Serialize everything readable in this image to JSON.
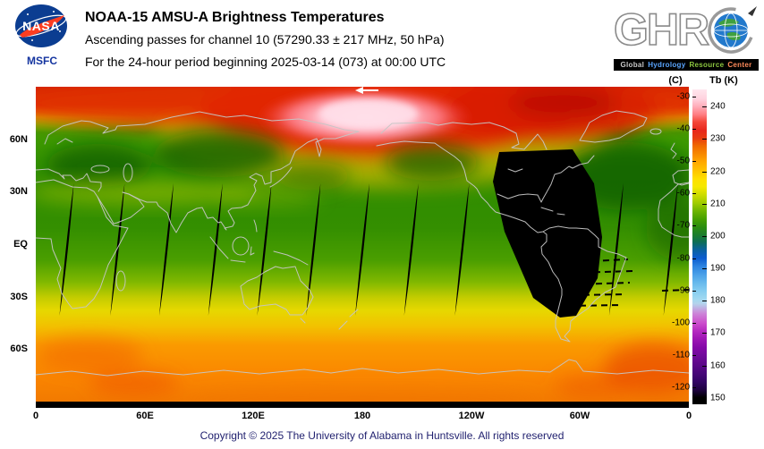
{
  "header": {
    "title": "NOAA-15 AMSU-A Brightness Temperatures",
    "subtitle_channel": "Ascending passes for channel 10 (57290.33 ± 217 MHz, 50 hPa)",
    "subtitle_period": "For the 24-hour period beginning 2025-03-14 (073) at 00:00 UTC",
    "nasa_logo": {
      "text": "NASA",
      "sub_label": "MSFC",
      "blue": "#0b3d91",
      "red": "#fc3d21"
    },
    "ghrc_logo": {
      "letters": "GHR",
      "letter_c": "earth-globe",
      "tagline": [
        "Global",
        "Hydrology",
        "Resource",
        "Center"
      ],
      "tagline_colors": [
        "#c8c8c8",
        "#5aa6ff",
        "#8cc63f",
        "#ff8a5a"
      ]
    }
  },
  "map": {
    "y_axis_labels": [
      "60N",
      "30N",
      "EQ",
      "30S",
      "60S"
    ],
    "x_axis_labels": [
      "0",
      "60E",
      "120E",
      "180",
      "120W",
      "60W",
      "0"
    ],
    "direction_arrow": "left"
  },
  "colorbar": {
    "celsius_header": "(C)",
    "kelvin_header": "Tb (K)",
    "kelvin_ticks": [
      240,
      230,
      220,
      210,
      200,
      190,
      180,
      170,
      160,
      150
    ],
    "celsius_ticks": [
      -30,
      -40,
      -50,
      -60,
      -70,
      -80,
      -90,
      -100,
      -110,
      -120
    ]
  },
  "footer": {
    "copyright": "Copyright © 2025 The University of Alabama in Huntsville. All rights reserved"
  },
  "chart_data": {
    "type": "heatmap",
    "title": "NOAA-15 AMSU-A Brightness Temperatures",
    "subtitle": "Ascending passes for channel 10 (57290.33 ± 217 MHz, 50 hPa)",
    "period": "24-hour period beginning 2025-03-14 (073) at 00:00 UTC",
    "projection": "equirectangular, longitude 0 to 360 east, latitude 90N to 90S",
    "x_axis": {
      "label": "longitude",
      "tick_labels": [
        "0",
        "60E",
        "120E",
        "180",
        "120W",
        "60W",
        "0"
      ],
      "range_deg": [
        0,
        360
      ]
    },
    "y_axis": {
      "label": "latitude",
      "tick_labels": [
        "60N",
        "30N",
        "EQ",
        "30S",
        "60S"
      ],
      "range_deg": [
        90,
        -90
      ]
    },
    "colorbar": {
      "left_title": "(C)",
      "right_title": "Tb (K)",
      "units": "K",
      "kelvin_ticks": [
        240,
        230,
        220,
        210,
        200,
        190,
        180,
        170,
        160,
        150
      ],
      "celsius_ticks": [
        -30,
        -40,
        -50,
        -60,
        -70,
        -80,
        -90,
        -100,
        -110,
        -120
      ],
      "scale_colors": [
        {
          "k": 245,
          "hex": "#ffe6ee"
        },
        {
          "k": 238,
          "hex": "#ff9aa8"
        },
        {
          "k": 230,
          "hex": "#ee3322"
        },
        {
          "k": 222,
          "hex": "#ff8800"
        },
        {
          "k": 215,
          "hex": "#ffd900"
        },
        {
          "k": 209,
          "hex": "#bcd400"
        },
        {
          "k": 204,
          "hex": "#4aa800"
        },
        {
          "k": 199,
          "hex": "#117744"
        },
        {
          "k": 193,
          "hex": "#0c5cd0"
        },
        {
          "k": 184,
          "hex": "#58b8ee"
        },
        {
          "k": 174,
          "hex": "#cc44cc"
        },
        {
          "k": 165,
          "hex": "#8408a8"
        },
        {
          "k": 155,
          "hex": "#320464"
        },
        {
          "k": 150,
          "hex": "#000000"
        }
      ]
    },
    "zonal_profile_estimate": {
      "lat": [
        85,
        70,
        60,
        50,
        40,
        30,
        20,
        10,
        0,
        -10,
        -20,
        -30,
        -40,
        -50,
        -60,
        -70,
        -80
      ],
      "tb_k": [
        236,
        232,
        226,
        210,
        206,
        209,
        206,
        205,
        205,
        206,
        209,
        214,
        217,
        220,
        221,
        222,
        223
      ]
    },
    "features": [
      {
        "name": "warm maximum (pink)",
        "location": "Arctic / North Pacific near 180 lon, 65N-85N",
        "tb_k": 240
      },
      {
        "name": "cold pockets (dark green)",
        "location": "northern mid-latitudes: Europe, central Asia, North Pacific, NE Atlantic",
        "tb_k": 199
      },
      {
        "name": "warm band (orange)",
        "location": "Southern Ocean 50S-75S",
        "tb_k": 221
      },
      {
        "name": "warm spot near Greenland (deep red)",
        "location": "60N-75N, 60W-20W",
        "tb_k": 233
      }
    ],
    "missing_data": {
      "inter_swath_gap_longitudes_deg": [
        17,
        45,
        72,
        99,
        126,
        153,
        180,
        -153,
        -125,
        -40,
        -10
      ],
      "gap_lat_extent_deg": [
        38,
        -38
      ],
      "large_gap": "No data (black) over eastern North America, western Atlantic and South America, approx. 105W-50W, 54N to 40S"
    }
  }
}
